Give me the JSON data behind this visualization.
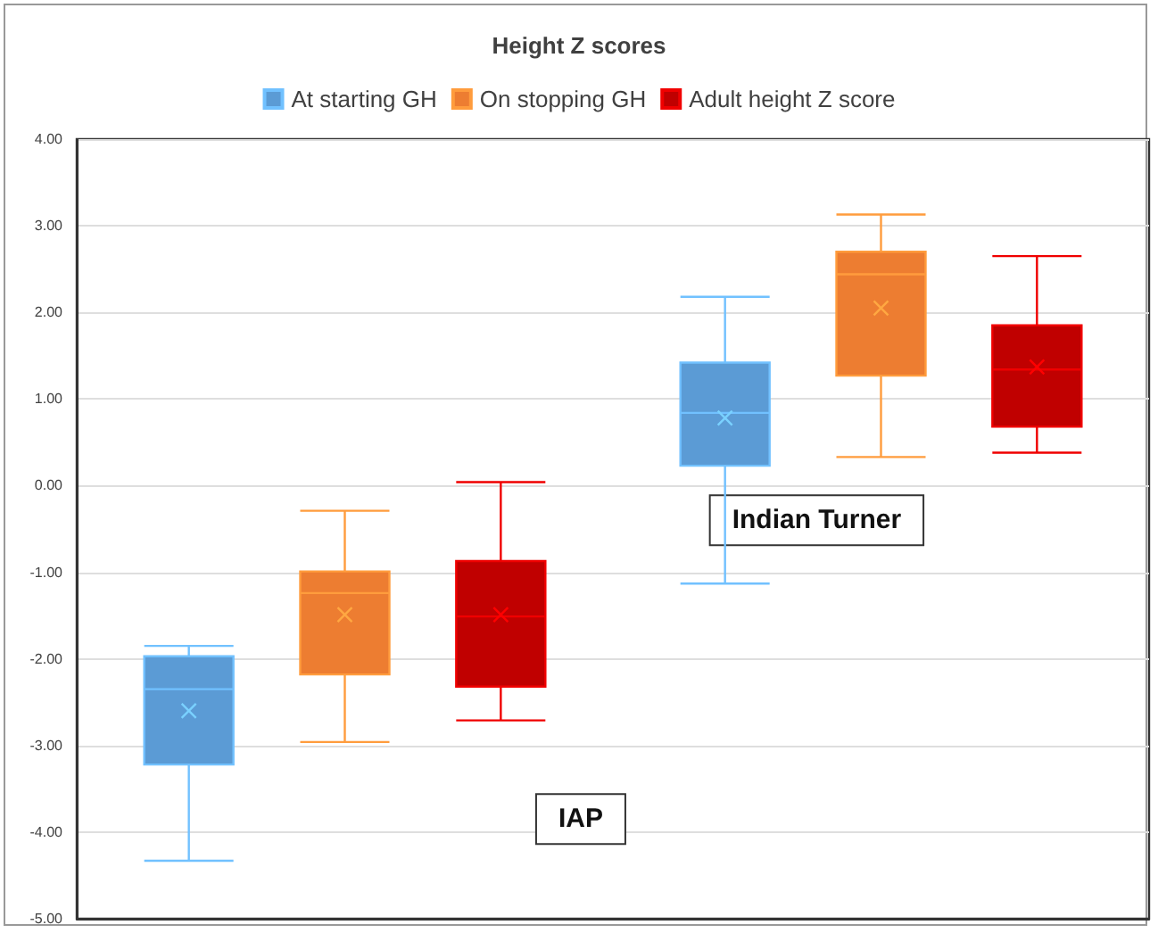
{
  "chart_data": {
    "type": "box",
    "title": "Height Z scores",
    "categories": [
      null,
      null
    ],
    "series": [
      {
        "name": "At starting GH",
        "color": "#5b9bd5",
        "boxes": [
          {
            "low": -4.33,
            "q1": -3.22,
            "median": -2.35,
            "q3": -1.97,
            "high": -1.85,
            "mean": -2.6
          },
          {
            "low": -1.13,
            "q1": 0.23,
            "median": 0.84,
            "q3": 1.42,
            "high": 2.18,
            "mean": 0.78
          }
        ]
      },
      {
        "name": "On stopping GH",
        "color": "#ed7d31",
        "boxes": [
          {
            "low": -2.96,
            "q1": -2.18,
            "median": -1.24,
            "q3": -0.99,
            "high": -0.29,
            "mean": -1.49
          },
          {
            "low": 0.33,
            "q1": 1.27,
            "median": 2.44,
            "q3": 2.7,
            "high": 3.13,
            "mean": 2.05
          }
        ]
      },
      {
        "name": "Adult height Z score",
        "color": "#c00000",
        "boxes": [
          {
            "low": -2.71,
            "q1": -2.32,
            "median": -1.51,
            "q3": -0.87,
            "high": 0.04,
            "mean": -1.49
          },
          {
            "low": 0.38,
            "q1": 0.68,
            "median": 1.34,
            "q3": 1.85,
            "high": 2.65,
            "mean": 1.37
          }
        ]
      }
    ],
    "ylim": [
      -5,
      4
    ],
    "yticks": [
      {
        "value": -5,
        "label": "-5.00"
      },
      {
        "value": -4,
        "label": "-4.00"
      },
      {
        "value": -3,
        "label": "-3.00"
      },
      {
        "value": -2,
        "label": "-2.00"
      },
      {
        "value": -1,
        "label": "-1.00"
      },
      {
        "value": 0,
        "label": "0.00"
      },
      {
        "value": 1,
        "label": "1.00"
      },
      {
        "value": 2,
        "label": "2.00"
      },
      {
        "value": 3,
        "label": "3.00"
      },
      {
        "value": 4,
        "label": "4.00"
      }
    ],
    "annotations": [
      "IAP",
      "Indian Turner"
    ],
    "grid": "y",
    "legend": "top"
  }
}
